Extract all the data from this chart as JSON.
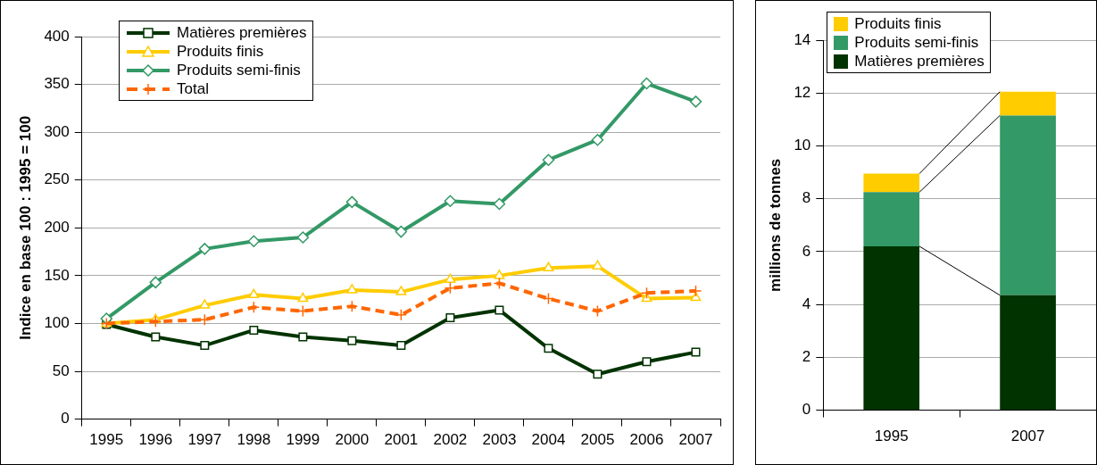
{
  "chart_data": [
    {
      "type": "line",
      "ylabel": "Indice en base 100 : 1995 = 100",
      "categories": [
        "1995",
        "1996",
        "1997",
        "1998",
        "1999",
        "2000",
        "2001",
        "2002",
        "2003",
        "2004",
        "2005",
        "2006",
        "2007"
      ],
      "series": [
        {
          "name": "Matières premières",
          "color": "#003300",
          "marker": "square",
          "line_style": "solid",
          "values": [
            99,
            86,
            77,
            93,
            86,
            82,
            77,
            106,
            114,
            74,
            47,
            60,
            70
          ]
        },
        {
          "name": "Produits finis",
          "color": "#ffcc00",
          "marker": "triangle",
          "line_style": "solid",
          "values": [
            100,
            104,
            119,
            130,
            126,
            135,
            133,
            146,
            150,
            158,
            160,
            126,
            127
          ]
        },
        {
          "name": "Produits semi-finis",
          "color": "#339966",
          "marker": "diamond",
          "line_style": "solid",
          "values": [
            105,
            143,
            178,
            186,
            190,
            227,
            196,
            228,
            225,
            271,
            292,
            351,
            332
          ]
        },
        {
          "name": "Total",
          "color": "#ff6600",
          "marker": "cross",
          "line_style": "dashed",
          "values": [
            100,
            102,
            104,
            117,
            113,
            118,
            109,
            137,
            142,
            126,
            113,
            132,
            134
          ]
        }
      ],
      "ylim": [
        0,
        400
      ],
      "yticks": [
        0,
        50,
        100,
        150,
        200,
        250,
        300,
        350,
        400
      ],
      "grid": "y",
      "legend": "top left"
    },
    {
      "type": "bar",
      "stacked": true,
      "ylabel": "millions de tonnes",
      "categories": [
        "1995",
        "2007"
      ],
      "series": [
        {
          "name": "Matières premières",
          "color": "#003300",
          "values": [
            6.2,
            4.35
          ]
        },
        {
          "name": "Produits semi-finis",
          "color": "#339966",
          "values": [
            2.05,
            6.8
          ]
        },
        {
          "name": "Produits finis",
          "color": "#ffcc00",
          "values": [
            0.7,
            0.9
          ]
        }
      ],
      "ylim": [
        0,
        14
      ],
      "yticks": [
        0,
        2,
        4,
        6,
        8,
        10,
        12,
        14
      ],
      "grid": "y",
      "legend": "top left"
    }
  ]
}
